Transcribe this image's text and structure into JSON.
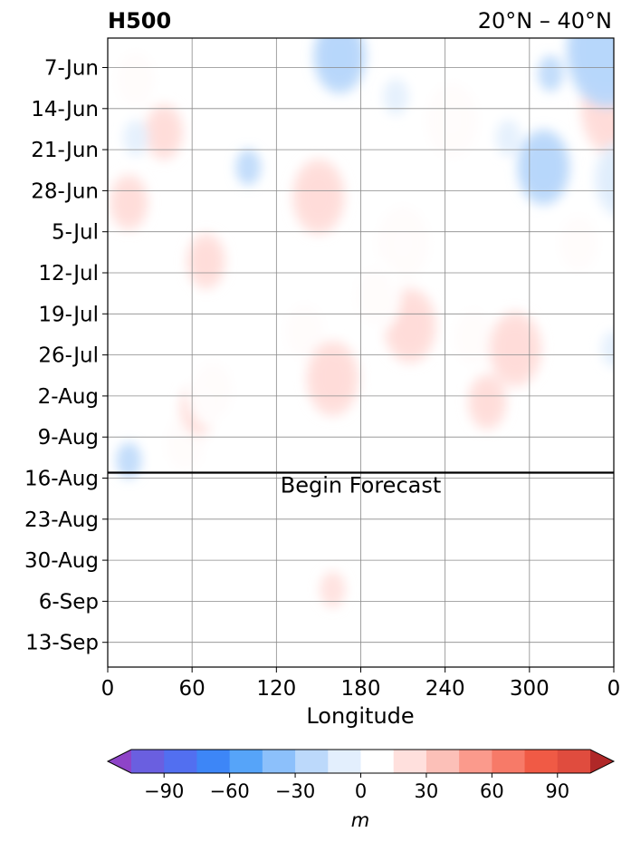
{
  "chart_data": {
    "type": "heatmap",
    "title_left": "H500",
    "title_right": "20°N – 40°N",
    "xlabel": "Longitude",
    "ylabel": "",
    "x_ticks": [
      {
        "lon": 0,
        "label": "0"
      },
      {
        "lon": 60,
        "label": "60"
      },
      {
        "lon": 120,
        "label": "120"
      },
      {
        "lon": 180,
        "label": "180"
      },
      {
        "lon": 240,
        "label": "240"
      },
      {
        "lon": 300,
        "label": "300"
      },
      {
        "lon": 360,
        "label": "0"
      }
    ],
    "xlim": [
      0,
      360
    ],
    "y_ticks": [
      "7-Jun",
      "14-Jun",
      "21-Jun",
      "28-Jun",
      "5-Jul",
      "12-Jul",
      "19-Jul",
      "26-Jul",
      "2-Aug",
      "9-Aug",
      "16-Aug",
      "23-Aug",
      "30-Aug",
      "6-Sep",
      "13-Sep"
    ],
    "y_first_date": "7-Jun",
    "forecast_start": "16-Aug",
    "forecast_label": "Begin Forecast",
    "grid": true,
    "colorbar": {
      "label": "m",
      "ticks": [
        -90,
        -60,
        -30,
        0,
        30,
        60,
        90
      ],
      "tick_labels": [
        "−90",
        "−60",
        "−30",
        "0",
        "30",
        "60",
        "90"
      ],
      "levels": [
        -105,
        -90,
        -75,
        -60,
        -45,
        -30,
        -15,
        0,
        15,
        30,
        45,
        60,
        75,
        90,
        105
      ],
      "colors": [
        "#7b52d6",
        "#6a5fe0",
        "#526ff0",
        "#3d86f7",
        "#56a4f9",
        "#8cc0fb",
        "#bcd9fb",
        "#e3effd",
        "#ffffff",
        "#ffe0dd",
        "#fcc0b8",
        "#fb9a8c",
        "#f77a68",
        "#f05a45",
        "#e04c3e",
        "#cc3e36",
        "#b82e2e"
      ],
      "under_color": "#8e44c8",
      "over_color": "#b02828",
      "extend": "both"
    },
    "anomaly_features": [
      {
        "lon": 55,
        "date": "10-Aug",
        "value": 38
      },
      {
        "lon": 65,
        "date": "4-Aug",
        "value": 30
      },
      {
        "lon": 75,
        "date": "1-Aug",
        "value": 44
      },
      {
        "lon": 150,
        "date": "29-Jun",
        "value": 48
      },
      {
        "lon": 140,
        "date": "22-Jul",
        "value": 42
      },
      {
        "lon": 160,
        "date": "30-Jul",
        "value": 52
      },
      {
        "lon": 210,
        "date": "7-Jul",
        "value": 55
      },
      {
        "lon": 215,
        "date": "21-Jul",
        "value": 52
      },
      {
        "lon": 245,
        "date": "16-Jun",
        "value": 56
      },
      {
        "lon": 260,
        "date": "23-Jul",
        "value": 40
      },
      {
        "lon": 290,
        "date": "25-Jul",
        "value": 45
      },
      {
        "lon": 335,
        "date": "7-Jul",
        "value": 40
      },
      {
        "lon": 360,
        "date": "14-Jun",
        "value": 62
      },
      {
        "lon": 15,
        "date": "30-Jun",
        "value": 30
      },
      {
        "lon": 20,
        "date": "9-Jun",
        "value": 40
      },
      {
        "lon": 40,
        "date": "18-Jun",
        "value": 35
      },
      {
        "lon": 70,
        "date": "10-Jul",
        "value": 32
      },
      {
        "lon": 190,
        "date": "16-Jul",
        "value": 40
      },
      {
        "lon": 270,
        "date": "3-Aug",
        "value": 35
      },
      {
        "lon": 160,
        "date": "4-Sep",
        "value": 22
      },
      {
        "lon": 245,
        "date": "28-Aug",
        "value": 8
      },
      {
        "lon": 165,
        "date": "5-Jun",
        "value": -50
      },
      {
        "lon": 355,
        "date": "4-Jun",
        "value": -82
      },
      {
        "lon": 310,
        "date": "24-Jun",
        "value": -48
      },
      {
        "lon": 365,
        "date": "26-Jun",
        "value": -40
      },
      {
        "lon": 315,
        "date": "8-Jun",
        "value": -20
      },
      {
        "lon": 100,
        "date": "24-Jun",
        "value": -18
      },
      {
        "lon": 20,
        "date": "19-Jun",
        "value": -15
      },
      {
        "lon": 285,
        "date": "19-Jun",
        "value": -15
      },
      {
        "lon": 15,
        "date": "13-Aug",
        "value": -20
      },
      {
        "lon": 360,
        "date": "25-Jul",
        "value": -12
      },
      {
        "lon": 205,
        "date": "12-Jun",
        "value": -12
      }
    ]
  }
}
